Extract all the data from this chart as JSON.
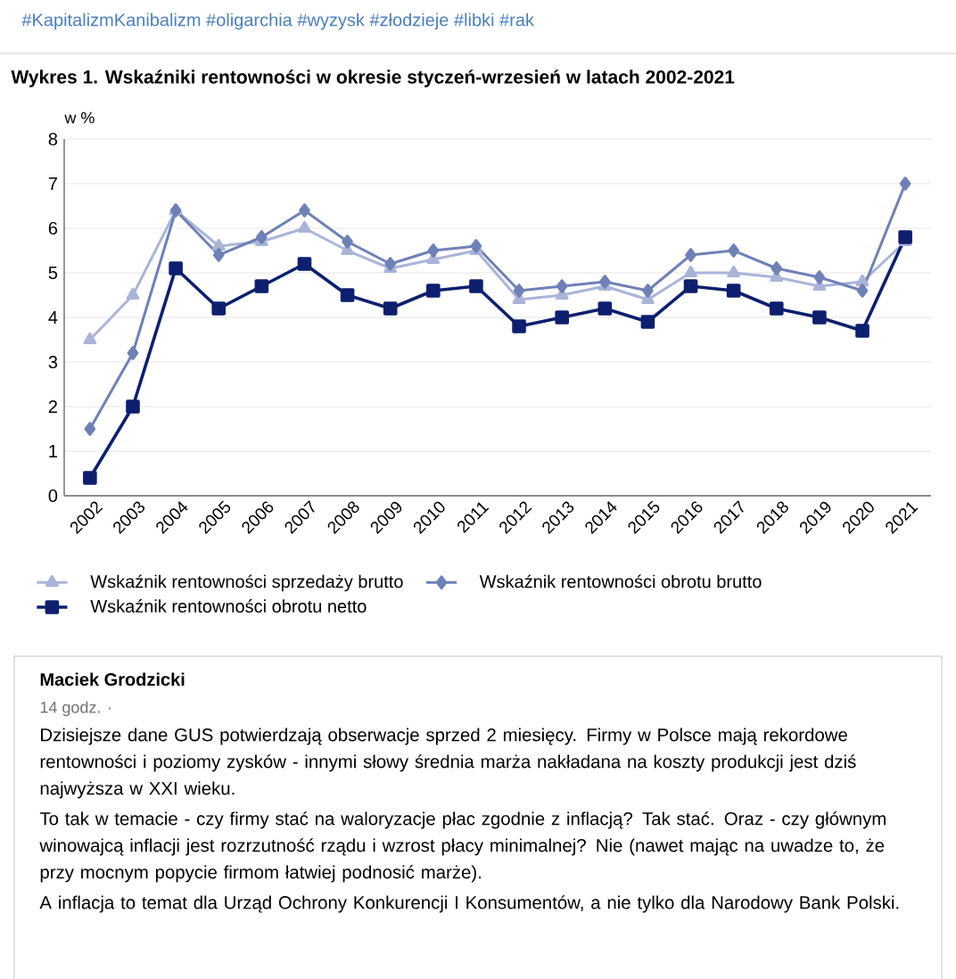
{
  "chart_data": {
    "type": "line",
    "title": "Wykres 1. Wskaźniki rentowności w okresie styczeń-wrzesień w latach 2002-2021",
    "ylabel": "w %",
    "categories": [
      "2002",
      "2003",
      "2004",
      "2005",
      "2006",
      "2007",
      "2008",
      "2009",
      "2010",
      "2011",
      "2012",
      "2013",
      "2014",
      "2015",
      "2016",
      "2017",
      "2018",
      "2019",
      "2020",
      "2021"
    ],
    "series": [
      {
        "name": "Wskaźnik rentowności sprzedaży brutto",
        "color": "#a9b4d8",
        "marker": "triangle",
        "values": [
          3.5,
          4.5,
          6.4,
          5.6,
          5.7,
          6.0,
          5.5,
          5.1,
          5.3,
          5.5,
          4.4,
          4.5,
          4.7,
          4.4,
          5.0,
          5.0,
          4.9,
          4.7,
          4.8,
          5.7
        ]
      },
      {
        "name": "Wskaźnik rentowności obrotu brutto",
        "color": "#6f80b6",
        "marker": "diamond",
        "values": [
          1.5,
          3.2,
          6.4,
          5.4,
          5.8,
          6.4,
          5.7,
          5.2,
          5.5,
          5.6,
          4.6,
          4.7,
          4.8,
          4.6,
          5.4,
          5.5,
          5.1,
          4.9,
          4.6,
          7.0
        ]
      },
      {
        "name": "Wskaźnik rentowności obrotu netto",
        "color": "#0d1f6e",
        "marker": "square",
        "values": [
          0.4,
          2.0,
          5.1,
          4.2,
          4.7,
          5.2,
          4.5,
          4.2,
          4.6,
          4.7,
          3.8,
          4.0,
          4.2,
          3.9,
          4.7,
          4.6,
          4.2,
          4.0,
          3.7,
          5.8
        ]
      }
    ],
    "ylim": [
      0,
      8
    ],
    "yticks": [
      0,
      1,
      2,
      3,
      4,
      5,
      6,
      7,
      8
    ],
    "grid": "y",
    "legend": "bottom",
    "line_style": "solid",
    "annotations": [
      "#KapitalizmKanibalizm #oligarchia #wyzysk #złodzieje #libki #rak",
      "Maciek Grodzicki",
      "14 godz. ·",
      "Dzisiejsze dane GUS potwierdzają obserwacje sprzed 2 miesięcy. Firmy w Polsce mają rekordowe rentowności i poziomy zysków - innymi słowy średnia marża nakładana na koszty produkcji jest dziś najwyższa w XXI wieku.",
      "To tak w temacie - czy firmy stać na waloryzacje płac zgodnie z inflacją? Tak stać. Oraz - czy głównym winowajcą inflacji jest rozrzutność rządu i wzrost płacy minimalnej? Nie (nawet mając na uwadze to, że przy mocnym popycie firmom łatwiej podnosić marże).",
      "A inflacja to temat dla Urząd Ochrony Konkurencji I Konsumentów, a nie tylko dla Narodowy Bank Polski."
    ]
  }
}
